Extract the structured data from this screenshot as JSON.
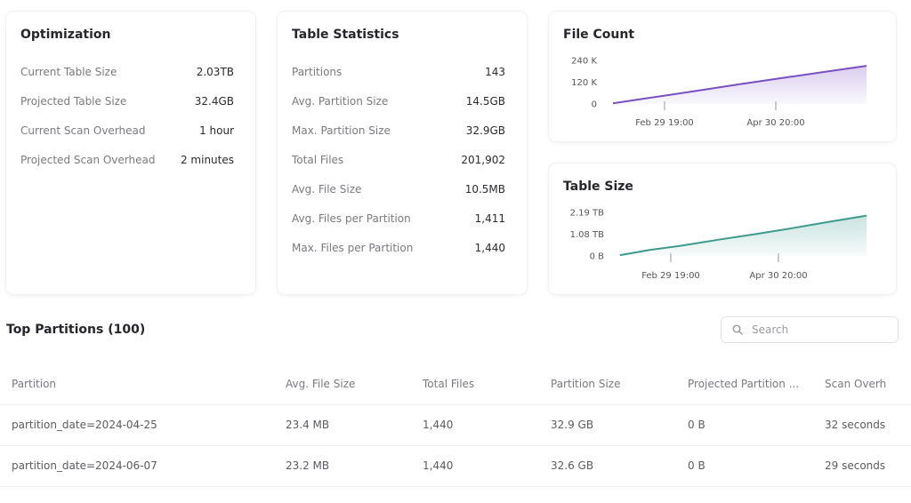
{
  "optimization": {
    "title": "Optimization",
    "stats": [
      {
        "label": "Current Table Size",
        "value": "2.03TB"
      },
      {
        "label": "Projected Table Size",
        "value": "32.4GB"
      },
      {
        "label": "Current Scan Overhead",
        "value": "1 hour"
      },
      {
        "label": "Projected Scan Overhead",
        "value": "2 minutes"
      }
    ]
  },
  "table_statistics": {
    "title": "Table Statistics",
    "stats": [
      {
        "label": "Partitions",
        "value": "143"
      },
      {
        "label": "Avg. Partition Size",
        "value": "14.5GB"
      },
      {
        "label": "Max. Partition Size",
        "value": "32.9GB"
      },
      {
        "label": "Total Files",
        "value": "201,902"
      },
      {
        "label": "Avg. File Size",
        "value": "10.5MB"
      },
      {
        "label": "Avg. Files per Partition",
        "value": "1,411"
      },
      {
        "label": "Max. Files per Partition",
        "value": "1,440"
      }
    ]
  },
  "chart_data": [
    {
      "type": "area",
      "title": "File Count",
      "color": "#7b4fc4",
      "y_ticks": [
        "240 K",
        "120 K",
        "0"
      ],
      "x_ticks": [
        "Feb 29 19:00",
        "Apr 30 20:00"
      ],
      "y_range_k": [
        0,
        240
      ],
      "x_progress": [
        0.0,
        0.12,
        0.3,
        0.5,
        0.7,
        0.88,
        1.0
      ],
      "values_k": [
        4,
        29,
        66,
        109,
        150,
        186,
        210
      ]
    },
    {
      "type": "area",
      "title": "Table Size",
      "color": "#3c9a8e",
      "y_ticks": [
        "2.19 TB",
        "1.08 TB",
        "0 B"
      ],
      "x_ticks": [
        "Feb 29 19:00",
        "Apr 30 20:00"
      ],
      "y_range_tb": [
        0,
        2.19
      ],
      "x_progress": [
        0.0,
        0.12,
        0.25,
        0.4,
        0.55,
        0.7,
        0.85,
        1.0
      ],
      "values_tb": [
        0.04,
        0.3,
        0.52,
        0.82,
        1.1,
        1.4,
        1.72,
        2.03
      ]
    }
  ],
  "partitions": {
    "title": "Top Partitions (100)",
    "search_placeholder": "Search",
    "columns": [
      "Partition",
      "Avg. File Size",
      "Total Files",
      "Partition Size",
      "Projected Partition ...",
      "Scan Overh"
    ],
    "rows": [
      [
        "partition_date=2024-04-25",
        "23.4 MB",
        "1,440",
        "32.9 GB",
        "0 B",
        "32 seconds"
      ],
      [
        "partition_date=2024-06-07",
        "23.2 MB",
        "1,440",
        "32.6 GB",
        "0 B",
        "29 seconds"
      ]
    ]
  }
}
